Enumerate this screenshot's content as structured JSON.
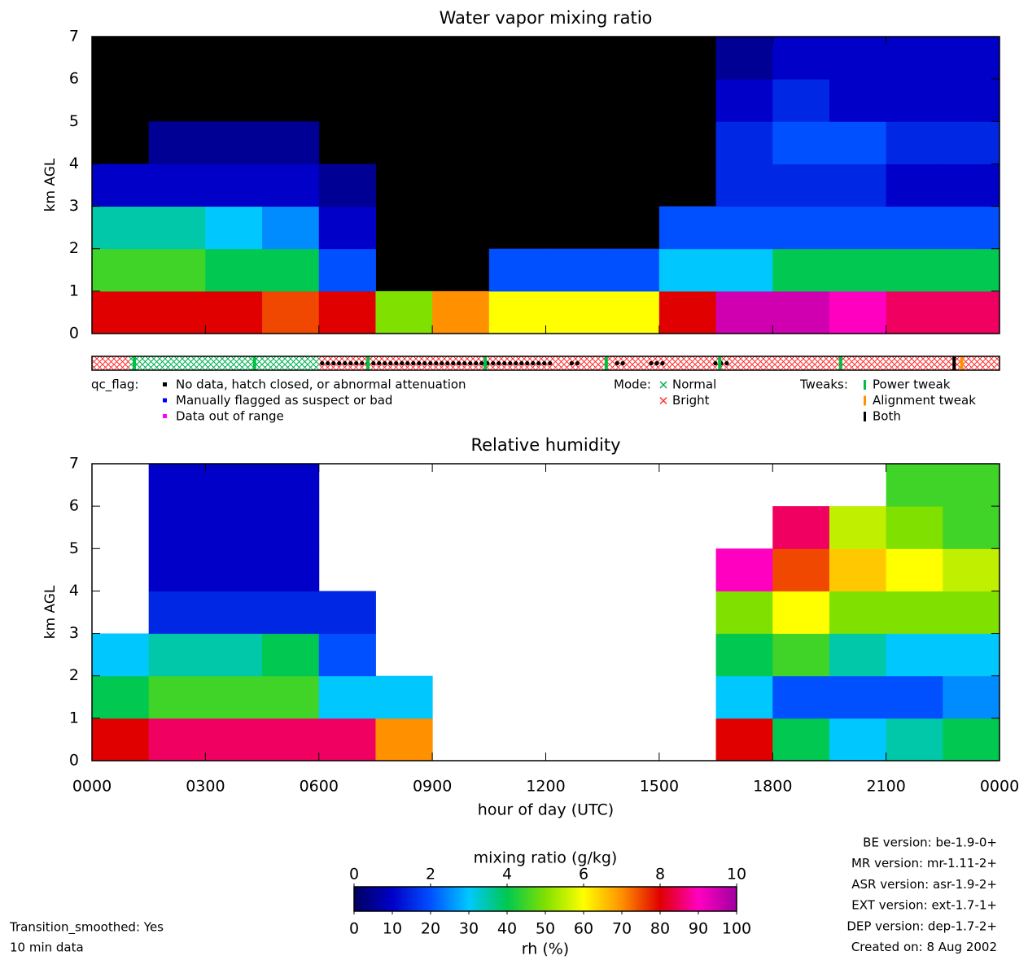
{
  "chart_data": [
    {
      "type": "heatmap",
      "title": "Water vapor mixing ratio",
      "ylabel": "km AGL",
      "x_edges": [
        0,
        1.5,
        3,
        4.5,
        6,
        7.5,
        9,
        10.5,
        12,
        13.5,
        15,
        16.5,
        18,
        19.5,
        21,
        22.5,
        24
      ],
      "y_edges": [
        0,
        1,
        2,
        3,
        4,
        5,
        6,
        7
      ],
      "z": [
        [
          8,
          4.5,
          3.5,
          1,
          null,
          null,
          null
        ],
        [
          8,
          4.5,
          3.5,
          1,
          0.5,
          null,
          null
        ],
        [
          8,
          4,
          3,
          1,
          0.5,
          null,
          null
        ],
        [
          7.5,
          4,
          2.5,
          1,
          0.5,
          null,
          null
        ],
        [
          8,
          2,
          1,
          0.5,
          null,
          null,
          null
        ],
        [
          5,
          null,
          null,
          null,
          null,
          null,
          null
        ],
        [
          7,
          null,
          null,
          null,
          null,
          null,
          null
        ],
        [
          6,
          2,
          null,
          null,
          null,
          null,
          null
        ],
        [
          6,
          2,
          null,
          null,
          null,
          null,
          null
        ],
        [
          6,
          2,
          null,
          null,
          null,
          null,
          null
        ],
        [
          8,
          3,
          2,
          null,
          null,
          null,
          null
        ],
        [
          9.5,
          3,
          2,
          1.5,
          1.5,
          1,
          0.5
        ],
        [
          9.5,
          4,
          2,
          1.5,
          2,
          1.5,
          1
        ],
        [
          9,
          4,
          2,
          1.5,
          2,
          1,
          1
        ],
        [
          8.5,
          4,
          2,
          1,
          1.5,
          1,
          1
        ],
        [
          8.5,
          4,
          2,
          1,
          1.5,
          1,
          1
        ]
      ],
      "zlim": [
        0,
        10
      ],
      "missing_color": "#000000",
      "xlim": [
        0,
        24
      ],
      "xticks": [
        0,
        3,
        6,
        9,
        12,
        15,
        18,
        21,
        24
      ],
      "ylim": [
        0,
        7
      ],
      "yticks": [
        0,
        1,
        2,
        3,
        4,
        5,
        6,
        7
      ]
    },
    {
      "type": "strip",
      "bright": [
        [
          0,
          1.0
        ],
        [
          6.0,
          24
        ]
      ],
      "normal": [
        [
          1.0,
          6.0
        ]
      ],
      "no_data": [
        [
          6.0,
          12.3
        ],
        [
          12.6,
          12.9
        ],
        [
          13.8,
          14.2
        ],
        [
          14.7,
          15.2
        ],
        [
          16.4,
          16.9
        ]
      ],
      "power_tweaks": [
        1.12,
        4.3,
        7.3,
        10.4,
        13.6,
        16.6,
        19.8
      ],
      "both_tweaks": [
        22.8
      ],
      "alignment_tweaks": [
        23.0
      ],
      "xlim": [
        0,
        24
      ],
      "legend": {
        "qc_label": "qc_flag:",
        "qc_items": [
          {
            "label": "No data, hatch closed, or abnormal attenuation",
            "color": "#000000"
          },
          {
            "label": "Manually flagged as suspect or bad",
            "color": "#0000ff"
          },
          {
            "label": "Data out of range",
            "color": "#ff00ff"
          }
        ],
        "mode_label": "Mode:",
        "mode_items": [
          {
            "label": "Normal",
            "color": "#00b050"
          },
          {
            "label": "Bright",
            "color": "#ff3030"
          }
        ],
        "tweak_label": "Tweaks:",
        "tweak_items": [
          {
            "label": "Power tweak",
            "color": "#00c040"
          },
          {
            "label": "Alignment tweak",
            "color": "#ff9000"
          },
          {
            "label": "Both",
            "color": "#000000"
          }
        ]
      }
    },
    {
      "type": "heatmap",
      "title": "Relative humidity",
      "ylabel": "km AGL",
      "xlabel": "hour of day (UTC)",
      "x_edges": [
        0,
        1.5,
        3,
        4.5,
        6,
        7.5,
        9,
        10.5,
        12,
        13.5,
        15,
        16.5,
        18,
        19.5,
        21,
        22.5,
        24
      ],
      "y_edges": [
        0,
        1,
        2,
        3,
        4,
        5,
        6,
        7
      ],
      "z": [
        [
          80,
          40,
          30,
          null,
          null,
          null,
          null
        ],
        [
          85,
          45,
          35,
          15,
          10,
          10,
          10
        ],
        [
          85,
          45,
          35,
          15,
          10,
          10,
          10
        ],
        [
          85,
          45,
          40,
          15,
          10,
          10,
          10
        ],
        [
          85,
          30,
          20,
          15,
          null,
          null,
          null
        ],
        [
          70,
          30,
          null,
          null,
          null,
          null,
          null
        ],
        [
          null,
          null,
          null,
          null,
          null,
          null,
          null
        ],
        [
          null,
          null,
          null,
          null,
          null,
          null,
          null
        ],
        [
          null,
          null,
          null,
          null,
          null,
          null,
          null
        ],
        [
          null,
          null,
          null,
          null,
          null,
          null,
          null
        ],
        [
          null,
          null,
          null,
          null,
          null,
          null,
          null
        ],
        [
          80,
          30,
          40,
          50,
          90,
          null,
          null
        ],
        [
          40,
          20,
          45,
          60,
          75,
          85,
          null
        ],
        [
          30,
          20,
          35,
          50,
          65,
          55,
          null
        ],
        [
          35,
          20,
          30,
          50,
          60,
          50,
          45
        ],
        [
          40,
          25,
          30,
          50,
          55,
          45,
          45
        ]
      ],
      "zlim": [
        0,
        100
      ],
      "missing_color": "#ffffff",
      "xlim": [
        0,
        24
      ],
      "xticks": [
        {
          "value": 0,
          "label": "0000"
        },
        {
          "value": 3,
          "label": "0300"
        },
        {
          "value": 6,
          "label": "0600"
        },
        {
          "value": 9,
          "label": "0900"
        },
        {
          "value": 12,
          "label": "1200"
        },
        {
          "value": 15,
          "label": "1500"
        },
        {
          "value": 18,
          "label": "1800"
        },
        {
          "value": 21,
          "label": "2100"
        },
        {
          "value": 24,
          "label": "0000"
        }
      ],
      "ylim": [
        0,
        7
      ],
      "yticks": [
        0,
        1,
        2,
        3,
        4,
        5,
        6,
        7
      ]
    }
  ],
  "colorbar": {
    "mr_label": "mixing ratio (g/kg)",
    "mr_lim": [
      0,
      10
    ],
    "mr_ticks": [
      0,
      2,
      4,
      6,
      8,
      10
    ],
    "rh_label": "rh (%)",
    "rh_lim": [
      0,
      100
    ],
    "rh_ticks": [
      0,
      10,
      20,
      30,
      40,
      50,
      60,
      70,
      80,
      90,
      100
    ],
    "colormap": [
      "#000060",
      "#0000c8",
      "#0050ff",
      "#00c8ff",
      "#00c850",
      "#80e000",
      "#ffff00",
      "#ff9000",
      "#e00000",
      "#ff00c0",
      "#a000a0"
    ]
  },
  "footer": {
    "left": [
      "Transition_smoothed: Yes",
      "10 min data"
    ],
    "right": [
      "BE version: be-1.9-0+",
      "MR version: mr-1.11-2+",
      "ASR version: asr-1.9-2+",
      "EXT version: ext-1.7-1+",
      "DEP version: dep-1.7-2+",
      "Created on:  8 Aug 2002"
    ]
  }
}
